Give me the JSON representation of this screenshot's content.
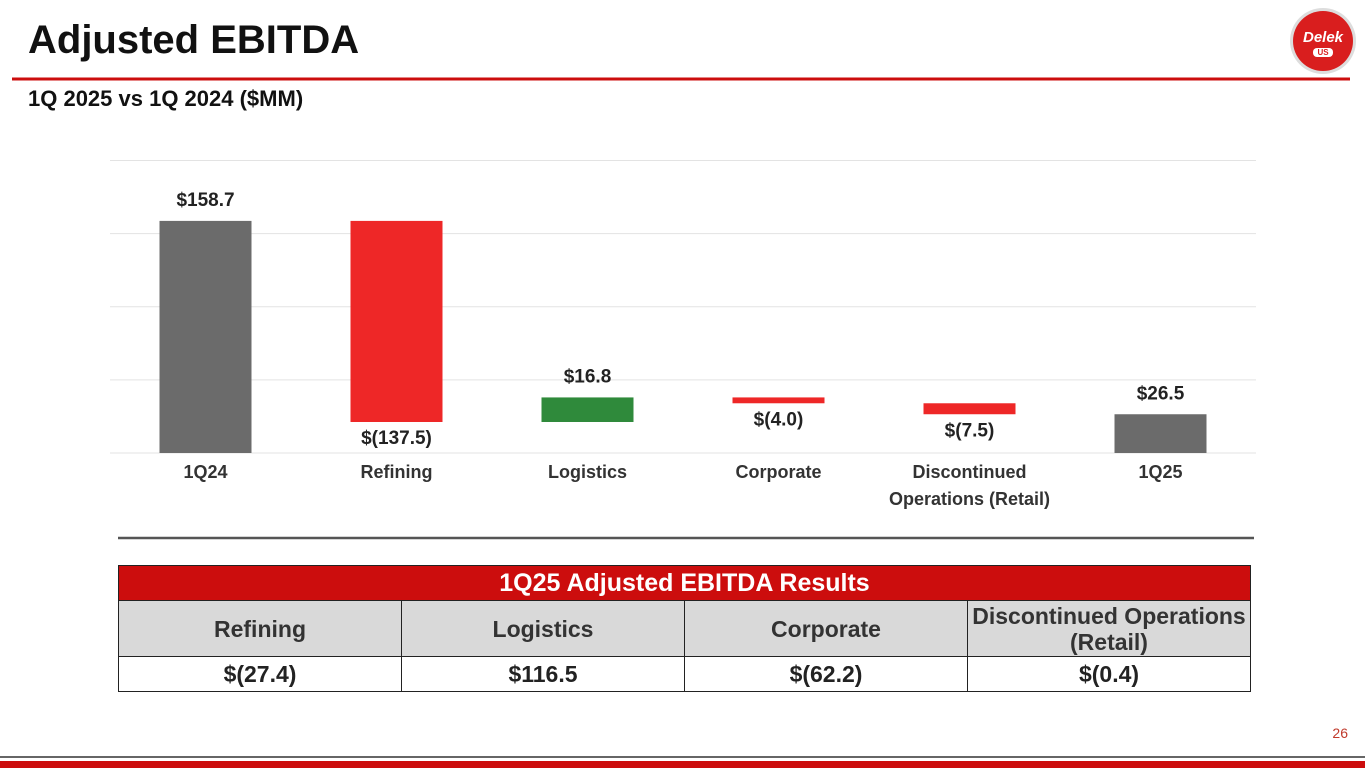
{
  "header": {
    "title": "Adjusted EBITDA",
    "subtitle": "1Q 2025 vs 1Q 2024 ($MM)"
  },
  "logo": {
    "name": "Delek",
    "sub": "US"
  },
  "chart_data": {
    "type": "waterfall",
    "categories": [
      "1Q24",
      "Refining",
      "Logistics",
      "Corporate",
      "Discontinued Operations (Retail)",
      "1Q25"
    ],
    "values": [
      158.7,
      -137.5,
      16.8,
      -4.0,
      -7.5,
      26.5
    ],
    "value_labels": [
      "$158.7",
      "$(137.5)",
      "$16.8",
      "$(4.0)",
      "$(7.5)",
      "$26.5"
    ],
    "is_total": [
      true,
      false,
      false,
      false,
      false,
      true
    ],
    "colors": [
      "#6b6b6b",
      "#ee2727",
      "#2f8a3b",
      "#ee2727",
      "#ee2727",
      "#6b6b6b"
    ],
    "ylim": [
      0,
      200
    ],
    "yticks": [
      0,
      50,
      100,
      150,
      200
    ],
    "grid": true
  },
  "table": {
    "title": "1Q25 Adjusted EBITDA Results",
    "columns": [
      "Refining",
      "Logistics",
      "Corporate",
      "Discontinued Operations (Retail)"
    ],
    "rows": [
      [
        "$(27.4)",
        "$116.5",
        "$(62.2)",
        "$(0.4)"
      ]
    ]
  },
  "page_number": "26"
}
